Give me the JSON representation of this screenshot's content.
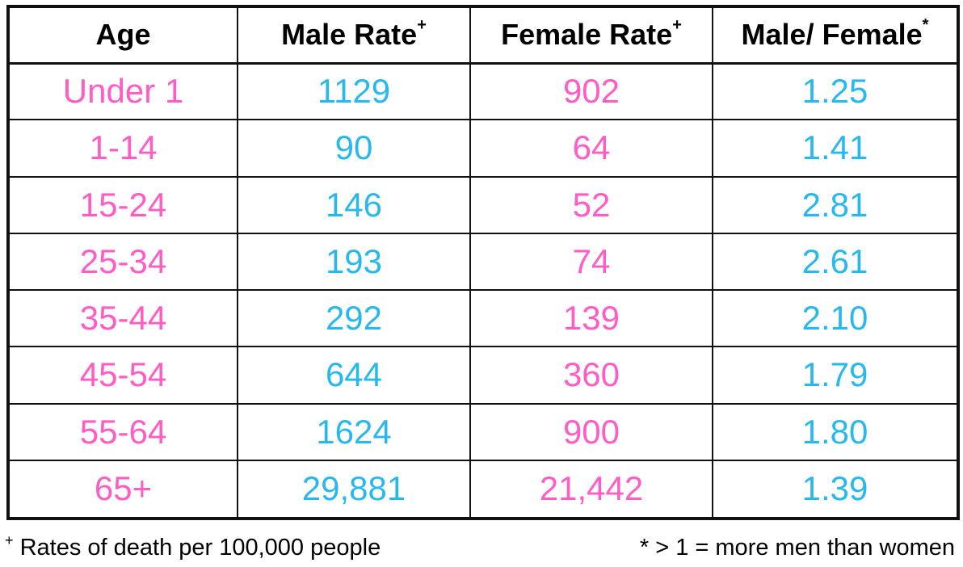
{
  "table": {
    "headers": [
      {
        "label": "Age",
        "marker": ""
      },
      {
        "label": "Male Rate",
        "marker": "+"
      },
      {
        "label": "Female Rate",
        "marker": "+"
      },
      {
        "label": "Male/ Female",
        "marker": "*"
      }
    ],
    "rows": [
      {
        "age": "Under 1",
        "male": "1129",
        "female": "902",
        "ratio": "1.25"
      },
      {
        "age": "1-14",
        "male": "90",
        "female": "64",
        "ratio": "1.41"
      },
      {
        "age": "15-24",
        "male": "146",
        "female": "52",
        "ratio": "2.81"
      },
      {
        "age": "25-34",
        "male": "193",
        "female": "74",
        "ratio": "2.61"
      },
      {
        "age": "35-44",
        "male": "292",
        "female": "139",
        "ratio": "2.10"
      },
      {
        "age": "45-54",
        "male": "644",
        "female": "360",
        "ratio": "1.79"
      },
      {
        "age": "55-64",
        "male": "1624",
        "female": "900",
        "ratio": "1.80"
      },
      {
        "age": "65+",
        "male": "29,881",
        "female": "21,442",
        "ratio": "1.39"
      }
    ]
  },
  "footnotes": {
    "left_marker": "+",
    "left_text": " Rates of death per 100,000 people",
    "right_text": "* > 1 = more men than women"
  },
  "colors": {
    "age_and_female": "#ff5cc5",
    "male_and_ratio": "#28b8ee",
    "border": "#111111"
  }
}
